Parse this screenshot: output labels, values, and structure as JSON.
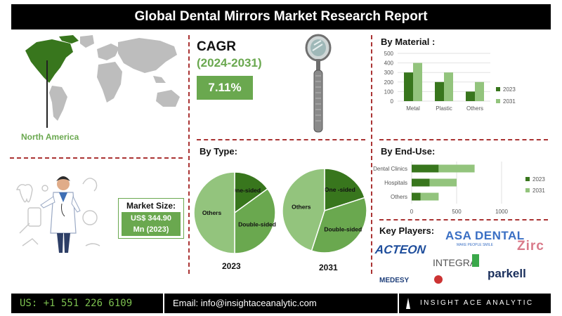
{
  "header": {
    "title": "Global Dental Mirrors Market Research Report"
  },
  "cagr": {
    "label": "CAGR",
    "period": "(2024-2031)",
    "value": "7.11%"
  },
  "region": {
    "label": "North America"
  },
  "market_size": {
    "title": "Market Size:",
    "value_line1": "US$ 344.90",
    "value_line2": "Mn (2023)"
  },
  "key_players": {
    "title": "Key Players:",
    "names": [
      "ACTEON",
      "ASA DENTAL",
      "MAKE PEOPLE SMILE",
      "Zirc",
      "INTEGRA",
      "MEDESY",
      "parkell"
    ]
  },
  "footer": {
    "phone": "US: +1 551 226 6109",
    "email": "Email: info@insightaceanalytic.com",
    "brand": "INSIGHT ACE ANALYTIC"
  },
  "colors": {
    "green": "#6aa84f",
    "dark_green": "#38761d",
    "light_green": "#93c47d",
    "divider": "#aa3333"
  },
  "chart_data": [
    {
      "type": "bar",
      "title": "By Material :",
      "categories": [
        "Metal",
        "Plastic",
        "Others"
      ],
      "series": [
        {
          "name": "2023",
          "values": [
            300,
            200,
            100
          ]
        },
        {
          "name": "2031",
          "values": [
            400,
            300,
            200
          ]
        }
      ],
      "yticks": [
        0,
        100,
        200,
        300,
        400,
        500
      ],
      "ylim": [
        0,
        500
      ],
      "legend": "right",
      "grid": true
    },
    {
      "type": "bar",
      "orientation": "horizontal",
      "title": "By  End-Use:",
      "categories": [
        "Dental Clinics",
        "Hospitals",
        "Others"
      ],
      "series": [
        {
          "name": "2023",
          "values": [
            300,
            200,
            100
          ]
        },
        {
          "name": "2031",
          "values": [
            700,
            500,
            300
          ]
        }
      ],
      "xticks": [
        0,
        500,
        1000
      ],
      "xlim": [
        0,
        1000
      ],
      "legend": "right",
      "grid": true
    },
    {
      "type": "pie",
      "title": "By Type:",
      "caption": "2023",
      "labels": [
        "One-sided",
        "Double-sided",
        "Others"
      ],
      "values": [
        15,
        35,
        50
      ]
    },
    {
      "type": "pie",
      "caption": "2031",
      "labels": [
        "One -sided",
        "Double-sided",
        "Others"
      ],
      "values": [
        20,
        35,
        45
      ]
    }
  ]
}
